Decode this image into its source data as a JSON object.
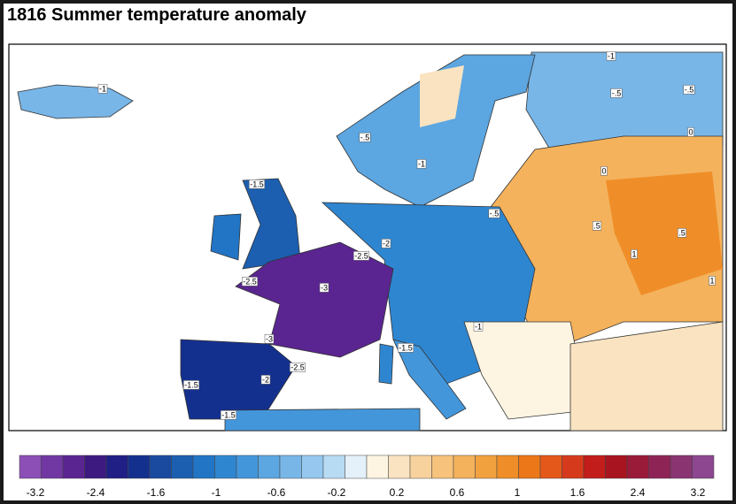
{
  "title": "1816 Summer temperature anomaly",
  "contour_labels": [
    "-1",
    "-.5",
    "-.5",
    "-1",
    "-1.5",
    "-2",
    "-2.5",
    "-3",
    "-2.5",
    "-3",
    "-2",
    "-1.5",
    "-1.5",
    "-2.5",
    "-1.5",
    "-1",
    "-.5",
    ".5",
    "1",
    ".5",
    "0",
    "0",
    "1",
    "-1",
    "-.5"
  ],
  "colorbar": {
    "colors": [
      "#8b4fb5",
      "#7138a3",
      "#5a2590",
      "#3c1a80",
      "#1f1f85",
      "#14308f",
      "#1a4aa0",
      "#1c5fb0",
      "#2274c4",
      "#2f86d0",
      "#4496da",
      "#5ca6e1",
      "#78b6e8",
      "#96c8ef",
      "#b8dbf4",
      "#e4f0fa",
      "#fdf4e2",
      "#fae3c0",
      "#f8d29c",
      "#f6c27c",
      "#f4b25c",
      "#f2a13f",
      "#ef8e28",
      "#eb7719",
      "#e4581a",
      "#d63a1c",
      "#c21d1a",
      "#a8141f",
      "#9a1a3a",
      "#8e2456",
      "#8a3472",
      "#8d4690"
    ],
    "tick_labels": [
      "-3.2",
      "-2.4",
      "-1.6",
      "-1",
      "-0.6",
      "-0.2",
      "0.2",
      "0.6",
      "1",
      "1.6",
      "2.4",
      "3.2"
    ]
  }
}
